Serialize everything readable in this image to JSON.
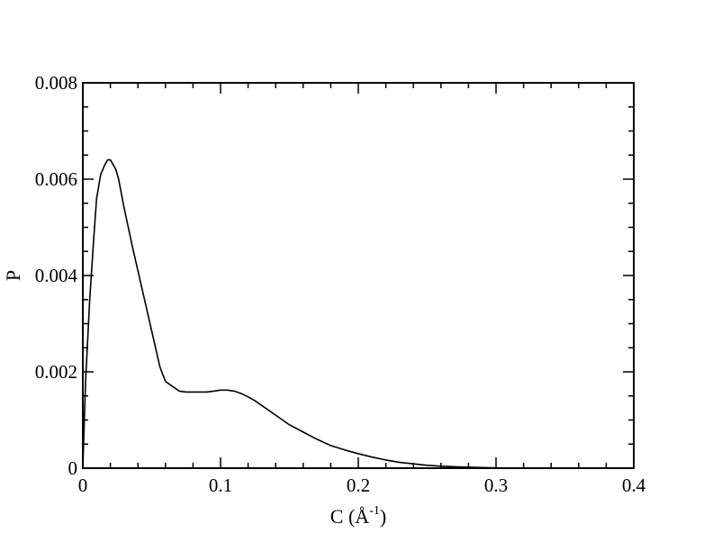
{
  "chart_data": {
    "type": "line",
    "title": "",
    "xlabel": "C (Å",
    "xlabel_sup": "-1",
    "xlabel_close": ")",
    "ylabel": "P",
    "xlim": [
      0,
      0.4
    ],
    "ylim": [
      0,
      0.008
    ],
    "x_ticks": [
      0,
      0.1,
      0.2,
      0.3,
      0.4
    ],
    "x_tick_labels": [
      "0",
      "0.1",
      "0.2",
      "0.3",
      "0.4"
    ],
    "y_ticks": [
      0,
      0.002,
      0.004,
      0.006,
      0.008
    ],
    "y_tick_labels": [
      "0",
      "0.002",
      "0.004",
      "0.006",
      "0.008"
    ],
    "grid": false,
    "series": [
      {
        "color": "#000000",
        "x": [
          0.0,
          0.002,
          0.005,
          0.008,
          0.01,
          0.013,
          0.016,
          0.018,
          0.02,
          0.022,
          0.024,
          0.026,
          0.028,
          0.03,
          0.033,
          0.036,
          0.04,
          0.044,
          0.048,
          0.052,
          0.056,
          0.06,
          0.065,
          0.07,
          0.075,
          0.08,
          0.085,
          0.09,
          0.095,
          0.1,
          0.105,
          0.11,
          0.115,
          0.12,
          0.125,
          0.13,
          0.14,
          0.15,
          0.16,
          0.17,
          0.18,
          0.19,
          0.2,
          0.21,
          0.22,
          0.23,
          0.24,
          0.25,
          0.26,
          0.27,
          0.28,
          0.29,
          0.3,
          0.31,
          0.32,
          0.33,
          0.34,
          0.35,
          0.36,
          0.37,
          0.38,
          0.39,
          0.4
        ],
        "y": [
          0.0,
          0.0018,
          0.0035,
          0.0048,
          0.0056,
          0.0061,
          0.0063,
          0.0064,
          0.0064,
          0.0063,
          0.0062,
          0.006,
          0.0057,
          0.0054,
          0.005,
          0.0046,
          0.0041,
          0.0036,
          0.0031,
          0.0026,
          0.0021,
          0.0018,
          0.0017,
          0.0016,
          0.00158,
          0.00158,
          0.00158,
          0.00158,
          0.0016,
          0.00162,
          0.00162,
          0.0016,
          0.00155,
          0.00148,
          0.0014,
          0.0013,
          0.0011,
          0.0009,
          0.00075,
          0.0006,
          0.00047,
          0.00038,
          0.0003,
          0.00023,
          0.00017,
          0.00012,
          9e-05,
          6e-05,
          4e-05,
          3e-05,
          2e-05,
          1.2e-05,
          7e-06,
          4e-06,
          2e-06,
          1e-06,
          5e-07,
          2e-07,
          0.0,
          0.0,
          0.0,
          0.0,
          0.0
        ]
      }
    ]
  }
}
